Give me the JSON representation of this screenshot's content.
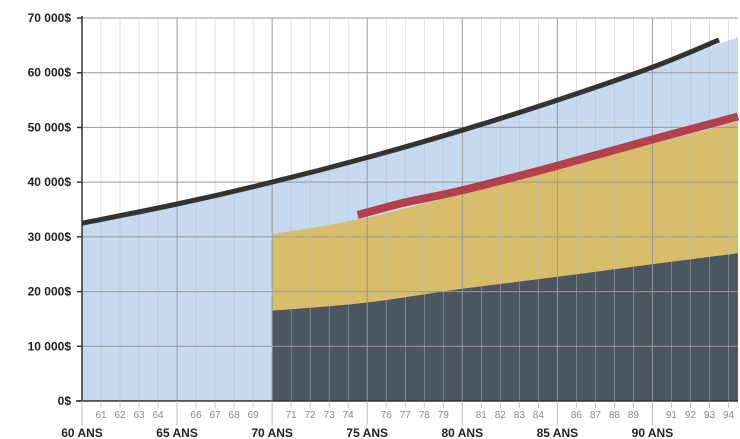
{
  "chart_data": {
    "type": "area",
    "title": "",
    "xlabel": "",
    "ylabel": "",
    "xlim": [
      60,
      94.5
    ],
    "ylim": [
      0,
      70000
    ],
    "grid": true,
    "y_ticks": [
      {
        "value": 0,
        "label": "0$"
      },
      {
        "value": 10000,
        "label": "10 000$"
      },
      {
        "value": 20000,
        "label": "20 000$"
      },
      {
        "value": 30000,
        "label": "30 000$"
      },
      {
        "value": 40000,
        "label": "40 000$"
      },
      {
        "value": 50000,
        "label": "50 000$"
      },
      {
        "value": 60000,
        "label": "60 000$"
      },
      {
        "value": 70000,
        "label": "70 000$"
      }
    ],
    "x_major_ticks": [
      {
        "value": 60,
        "label": "60 ANS"
      },
      {
        "value": 65,
        "label": "65 ANS"
      },
      {
        "value": 70,
        "label": "70 ANS"
      },
      {
        "value": 75,
        "label": "75 ANS"
      },
      {
        "value": 80,
        "label": "80 ANS"
      },
      {
        "value": 85,
        "label": "85 ANS"
      },
      {
        "value": 90,
        "label": "90 ANS"
      }
    ],
    "x_minor_ticks": [
      {
        "value": 61,
        "label": "61"
      },
      {
        "value": 62,
        "label": "62"
      },
      {
        "value": 63,
        "label": "63"
      },
      {
        "value": 64,
        "label": "64"
      },
      {
        "value": 66,
        "label": "66"
      },
      {
        "value": 67,
        "label": "67"
      },
      {
        "value": 68,
        "label": "68"
      },
      {
        "value": 69,
        "label": "69"
      },
      {
        "value": 71,
        "label": "71"
      },
      {
        "value": 72,
        "label": "72"
      },
      {
        "value": 73,
        "label": "73"
      },
      {
        "value": 74,
        "label": "74"
      },
      {
        "value": 76,
        "label": "76"
      },
      {
        "value": 77,
        "label": "77"
      },
      {
        "value": 78,
        "label": "78"
      },
      {
        "value": 79,
        "label": "79"
      },
      {
        "value": 81,
        "label": "81"
      },
      {
        "value": 82,
        "label": "82"
      },
      {
        "value": 83,
        "label": "83"
      },
      {
        "value": 84,
        "label": "84"
      },
      {
        "value": 86,
        "label": "86"
      },
      {
        "value": 87,
        "label": "87"
      },
      {
        "value": 88,
        "label": "88"
      },
      {
        "value": 89,
        "label": "89"
      },
      {
        "value": 91,
        "label": "91"
      },
      {
        "value": 92,
        "label": "92"
      },
      {
        "value": 93,
        "label": "93"
      },
      {
        "value": 94,
        "label": "94"
      }
    ],
    "colors": {
      "blue_area": "#c5d9ef",
      "gold_area": "#d8bd6a",
      "dark_area": "#4b5661",
      "black_line": "#333333",
      "red_line": "#b3404a",
      "grid": "#bbbbbb",
      "axis": "#333333"
    },
    "series": [
      {
        "kind": "area",
        "color_key": "blue_area",
        "x": [
          60,
          65,
          70,
          75,
          80,
          85,
          90,
          94.5
        ],
        "values": [
          32500,
          36000,
          40000,
          44500,
          49500,
          55000,
          61000,
          66500
        ]
      },
      {
        "kind": "area",
        "color_key": "gold_area",
        "x": [
          70,
          75,
          80,
          85,
          90,
          94.5
        ],
        "values": [
          30500,
          33500,
          38000,
          42500,
          47000,
          51000
        ]
      },
      {
        "kind": "area",
        "color_key": "dark_area",
        "x": [
          70,
          75,
          80,
          85,
          90,
          94.5
        ],
        "values": [
          16500,
          18000,
          20500,
          22700,
          25000,
          27000
        ]
      },
      {
        "kind": "line",
        "color_key": "black_line",
        "x": [
          60,
          65,
          70,
          75,
          80,
          85,
          90,
          93.5
        ],
        "values": [
          32500,
          36000,
          40000,
          44500,
          49500,
          55000,
          61000,
          66000
        ]
      },
      {
        "kind": "line",
        "color_key": "red_line",
        "x": [
          74.5,
          77,
          80,
          85,
          90,
          94.5
        ],
        "values": [
          34000,
          36300,
          38500,
          43000,
          47800,
          52000
        ]
      }
    ]
  }
}
